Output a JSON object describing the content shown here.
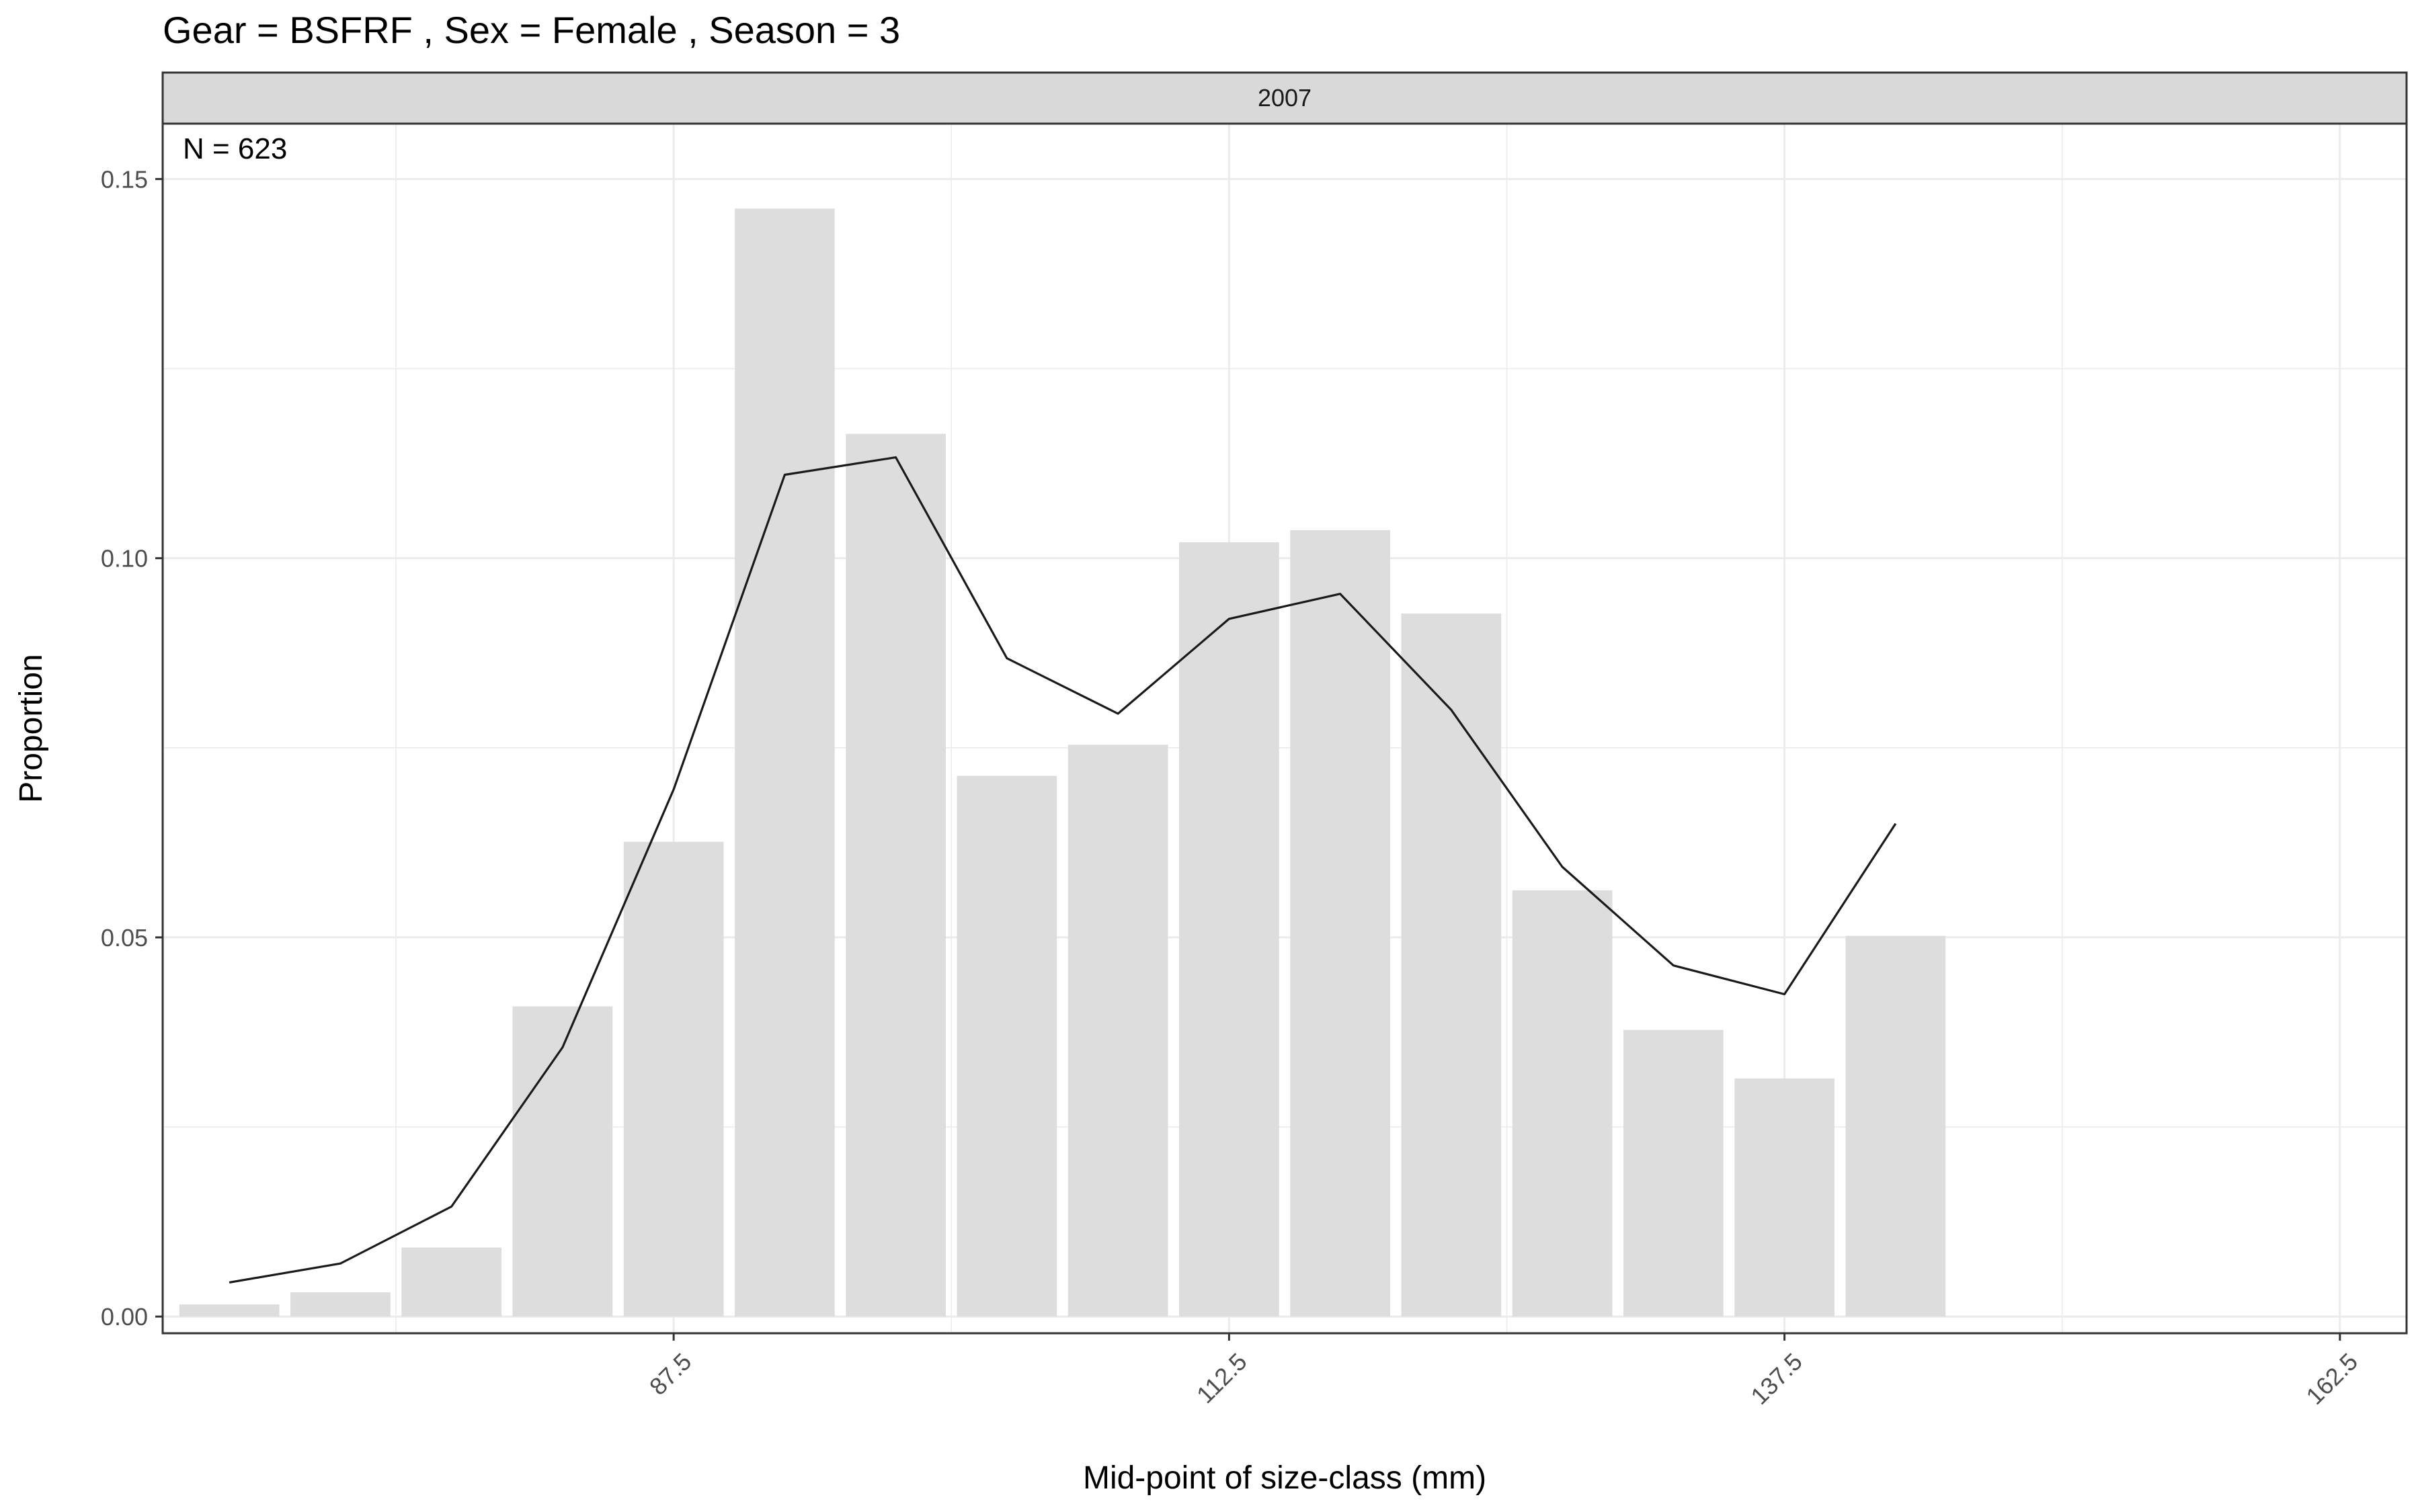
{
  "chart_data": {
    "type": "bar",
    "title": "Gear = BSFRF , Sex = Female , Season = 3",
    "facet_label": "2007",
    "annotation": "N = 623",
    "xlabel": "Mid-point of size-class (mm)",
    "ylabel": "Proportion",
    "xlim": [
      64.5,
      165.5
    ],
    "ylim": [
      -0.0022,
      0.1573
    ],
    "x_ticks": [
      87.5,
      112.5,
      137.5,
      162.5
    ],
    "x_tick_labels": [
      "87.5",
      "112.5",
      "137.5",
      "162.5"
    ],
    "y_ticks": [
      0,
      0.05,
      0.1,
      0.15
    ],
    "y_tick_labels": [
      "0.00",
      "0.05",
      "0.10",
      "0.15"
    ],
    "grid": true,
    "colors": {
      "bars": "#dddddd",
      "line": "#1a1a1a",
      "strip": "#d9d9d9",
      "grid": "#ebebeb"
    },
    "series": [
      {
        "type": "bar",
        "x": [
          67.5,
          72.5,
          77.5,
          82.5,
          87.5,
          92.5,
          97.5,
          102.5,
          107.5,
          112.5,
          117.5,
          122.5,
          127.5,
          132.5,
          137.5,
          142.5
        ],
        "values": [
          0.0016,
          0.0032,
          0.0091,
          0.0409,
          0.0626,
          0.1461,
          0.1164,
          0.0713,
          0.0754,
          0.1021,
          0.1037,
          0.0927,
          0.0562,
          0.0378,
          0.0314,
          0.0502
        ]
      },
      {
        "type": "line",
        "x": [
          67.5,
          72.5,
          77.5,
          82.5,
          87.5,
          92.5,
          97.5,
          102.5,
          107.5,
          112.5,
          117.5,
          122.5,
          127.5,
          132.5,
          137.5,
          142.5
        ],
        "values": [
          0.0045,
          0.007,
          0.0145,
          0.0355,
          0.0695,
          0.111,
          0.1133,
          0.0868,
          0.0795,
          0.092,
          0.0953,
          0.08,
          0.0593,
          0.0463,
          0.0425,
          0.065
        ]
      }
    ]
  }
}
